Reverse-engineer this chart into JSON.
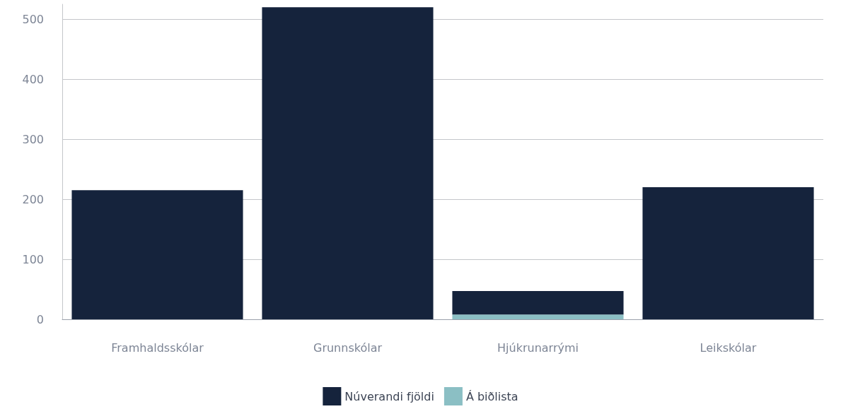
{
  "chart_data": {
    "type": "bar",
    "stacked": true,
    "categories": [
      "Framhaldsskólar",
      "Grunnskólar",
      "Hjúkrunarrými",
      "Leikskólar"
    ],
    "series": [
      {
        "name": "Á biðlista",
        "color": "#8bbfc4",
        "values": [
          0,
          0,
          8,
          0
        ]
      },
      {
        "name": "Núverandi fjöldi",
        "color": "#15233c",
        "values": [
          215,
          520,
          39,
          220
        ]
      }
    ],
    "ylim": [
      0,
      525
    ],
    "yticks": [
      0,
      100,
      200,
      300,
      400,
      500
    ],
    "grid": "y",
    "legend": "bottom"
  }
}
